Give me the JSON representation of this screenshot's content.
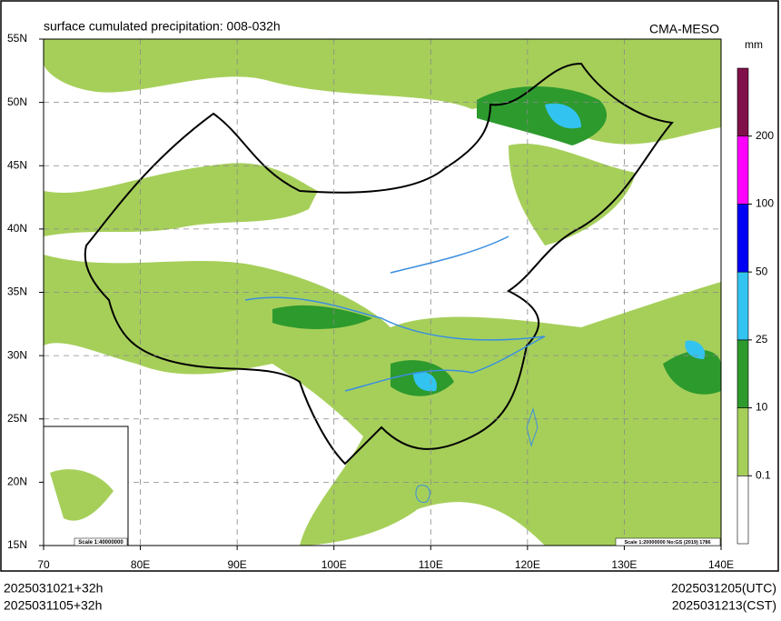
{
  "header": {
    "title": "surface cumulated precipitation: 008-032h",
    "model": "CMA-MESO"
  },
  "map": {
    "lat_labels": [
      "55N",
      "50N",
      "45N",
      "40N",
      "35N",
      "30N",
      "25N",
      "20N",
      "15N"
    ],
    "lon_labels": [
      "70",
      "80E",
      "90E",
      "100E",
      "110E",
      "120E",
      "130E",
      "140E"
    ],
    "scale_note": "Scale 1:20000000 No:GS (2019) 1786",
    "inset_scale": "Scale 1:40000000"
  },
  "colorbar": {
    "unit": "mm",
    "levels": [
      0.1,
      10,
      25,
      50,
      100,
      200
    ],
    "colors": [
      "#ffffff",
      "#a6cf5a",
      "#2d9a2d",
      "#33c3f0",
      "#0000f5",
      "#ff00ff",
      "#80104a"
    ]
  },
  "footer": {
    "init_utc": "2025031021+32h",
    "init_cst": "2025031105+32h",
    "valid_utc": "2025031205(UTC)",
    "valid_cst": "2025031213(CST)"
  }
}
